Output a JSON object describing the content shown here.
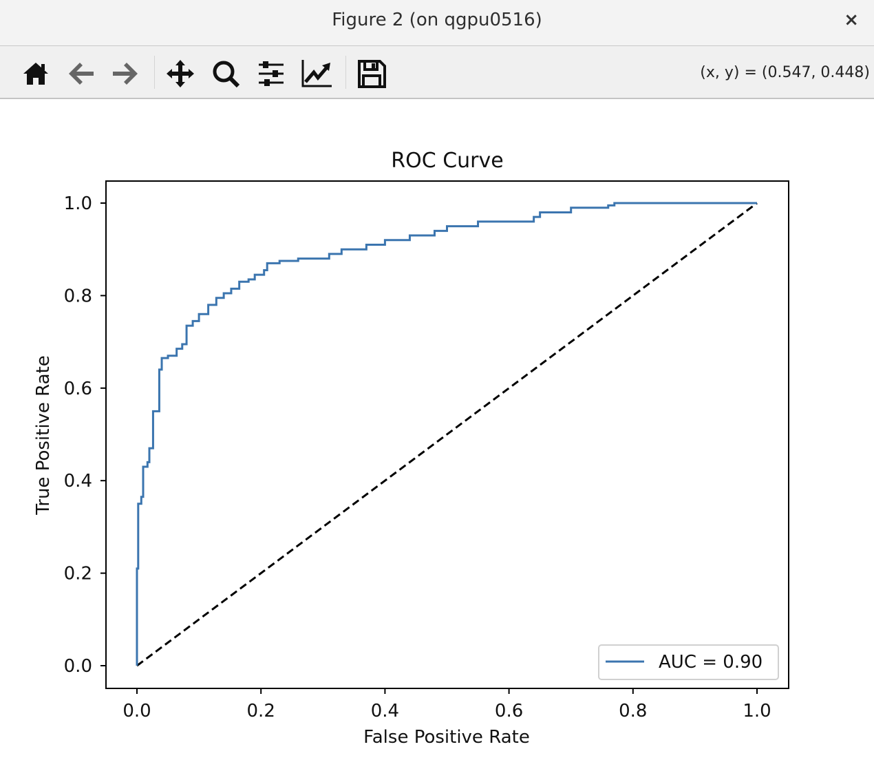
{
  "window": {
    "title": "Figure 2 (on qgpu0516)",
    "close_label": "×"
  },
  "toolbar": {
    "buttons": [
      "home-icon",
      "back-icon",
      "forward-icon",
      "pan-icon",
      "zoom-icon",
      "configure-subplots-icon",
      "edit-axes-icon",
      "save-icon"
    ],
    "coords": "(x, y) = (0.547, 0.448)"
  },
  "chart_data": {
    "type": "line",
    "title": "ROC Curve",
    "xlabel": "False Positive Rate",
    "ylabel": "True Positive Rate",
    "xlim": [
      -0.05,
      1.05
    ],
    "ylim": [
      -0.05,
      1.05
    ],
    "xticks": [
      "0.0",
      "0.2",
      "0.4",
      "0.6",
      "0.8",
      "1.0"
    ],
    "yticks": [
      "0.0",
      "0.2",
      "0.4",
      "0.6",
      "0.8",
      "1.0"
    ],
    "grid": false,
    "legend_position": "lower-right",
    "series": [
      {
        "name": "AUC = 0.90",
        "color": "#3b75af",
        "style": "solid",
        "x": [
          0,
          0,
          0.002,
          0.002,
          0.007,
          0.007,
          0.01,
          0.01,
          0.017,
          0.017,
          0.02,
          0.02,
          0.026,
          0.026,
          0.036,
          0.036,
          0.04,
          0.04,
          0.05,
          0.05,
          0.064,
          0.064,
          0.073,
          0.073,
          0.08,
          0.08,
          0.09,
          0.09,
          0.1,
          0.1,
          0.115,
          0.115,
          0.128,
          0.128,
          0.14,
          0.14,
          0.152,
          0.152,
          0.165,
          0.165,
          0.18,
          0.18,
          0.19,
          0.19,
          0.205,
          0.205,
          0.21,
          0.21,
          0.23,
          0.23,
          0.26,
          0.26,
          0.31,
          0.31,
          0.33,
          0.33,
          0.37,
          0.37,
          0.4,
          0.4,
          0.44,
          0.44,
          0.48,
          0.48,
          0.5,
          0.5,
          0.55,
          0.55,
          0.64,
          0.64,
          0.65,
          0.65,
          0.7,
          0.7,
          0.76,
          0.76,
          0.77,
          0.77,
          1.0
        ],
        "y": [
          0,
          0.21,
          0.21,
          0.35,
          0.35,
          0.365,
          0.365,
          0.43,
          0.43,
          0.44,
          0.44,
          0.47,
          0.47,
          0.55,
          0.55,
          0.64,
          0.64,
          0.665,
          0.665,
          0.67,
          0.67,
          0.685,
          0.685,
          0.695,
          0.695,
          0.735,
          0.735,
          0.745,
          0.745,
          0.76,
          0.76,
          0.78,
          0.78,
          0.795,
          0.795,
          0.805,
          0.805,
          0.815,
          0.815,
          0.83,
          0.83,
          0.835,
          0.835,
          0.845,
          0.845,
          0.855,
          0.855,
          0.87,
          0.87,
          0.875,
          0.875,
          0.88,
          0.88,
          0.89,
          0.89,
          0.9,
          0.9,
          0.91,
          0.91,
          0.92,
          0.92,
          0.93,
          0.93,
          0.94,
          0.94,
          0.95,
          0.95,
          0.96,
          0.96,
          0.97,
          0.97,
          0.98,
          0.98,
          0.99,
          0.99,
          0.995,
          0.995,
          1.0,
          1.0
        ]
      },
      {
        "color": "#000000",
        "style": "dashed",
        "x": [
          0,
          1
        ],
        "y": [
          0,
          1
        ]
      }
    ]
  }
}
